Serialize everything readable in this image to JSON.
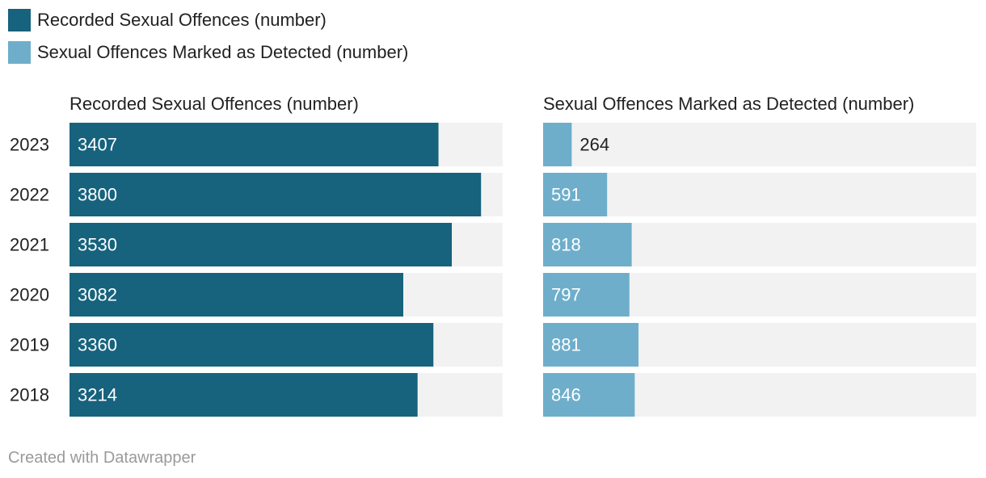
{
  "legend": {
    "items": [
      {
        "label": "Recorded Sexual Offences (number)",
        "color": "#17627d"
      },
      {
        "label": "Sexual Offences Marked as Detected (number)",
        "color": "#6eaecb"
      }
    ]
  },
  "chart_data": {
    "type": "bar",
    "orientation": "horizontal",
    "background_track_color": "#f2f2f2",
    "categories": [
      "2023",
      "2022",
      "2021",
      "2020",
      "2019",
      "2018"
    ],
    "series": [
      {
        "name": "Recorded Sexual Offences (number)",
        "color": "#17627d",
        "label_color": "#ffffff",
        "values": [
          3407,
          3800,
          3530,
          3082,
          3360,
          3214
        ],
        "xlim": [
          0,
          4000
        ]
      },
      {
        "name": "Sexual Offences Marked as Detected (number)",
        "color": "#6eaecb",
        "label_color": "#ffffff",
        "values": [
          264,
          591,
          818,
          797,
          881,
          846
        ],
        "xlim": [
          0,
          4000
        ]
      }
    ]
  },
  "footer": {
    "credit": "Created with Datawrapper"
  }
}
